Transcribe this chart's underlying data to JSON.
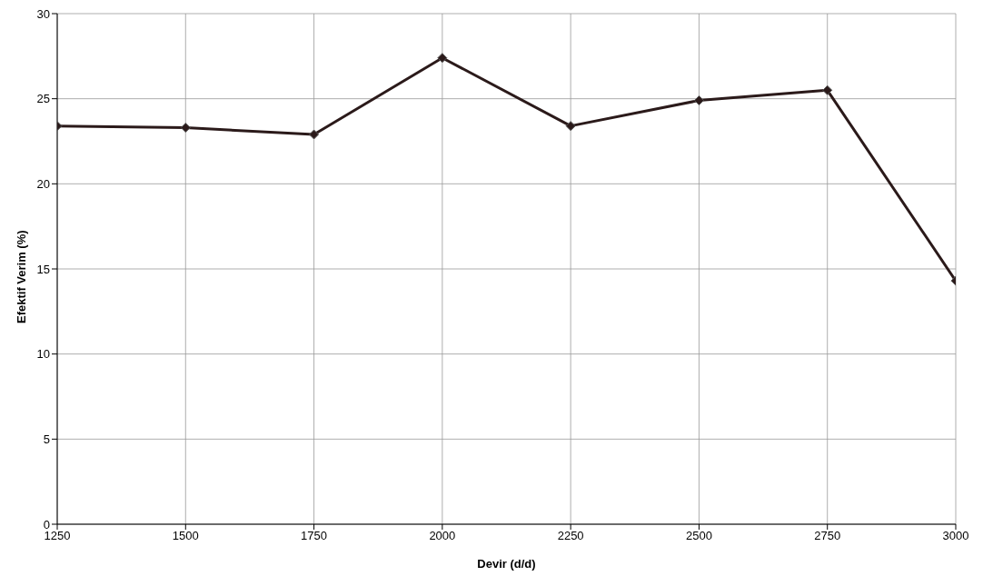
{
  "chart_data": {
    "type": "line",
    "xlabel": "Devir (d/d)",
    "ylabel": "Efektif Verim (%)",
    "x": [
      1250,
      1500,
      1750,
      2000,
      2250,
      2500,
      2750,
      3000
    ],
    "series": [
      {
        "color": "#2b1a1a",
        "values": [
          23.4,
          23.3,
          22.9,
          27.4,
          23.4,
          24.9,
          25.5,
          14.3
        ]
      }
    ],
    "xlim": [
      1250,
      3000
    ],
    "xticks": [
      1250,
      1500,
      1750,
      2000,
      2250,
      2500,
      2750,
      3000
    ],
    "ylim": [
      0,
      30
    ],
    "yticks": [
      0,
      5,
      10,
      15,
      20,
      25,
      30
    ],
    "grid": true,
    "marker": "diamond",
    "legend": false
  }
}
